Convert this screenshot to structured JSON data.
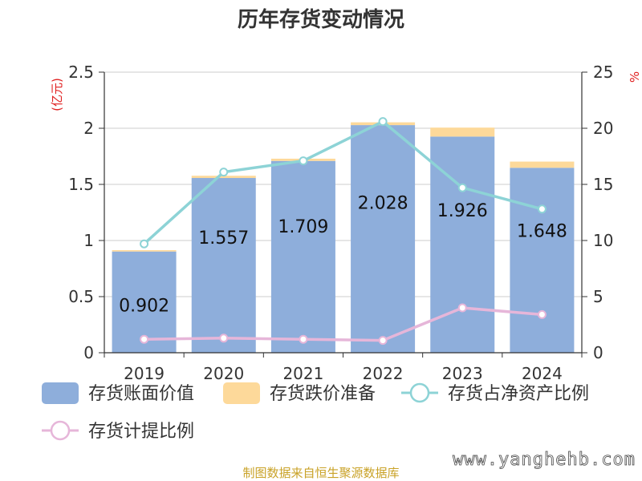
{
  "chart_data": {
    "type": "bar",
    "title": "历年存货变动情况",
    "categories": [
      "2019",
      "2020",
      "2021",
      "2022",
      "2023",
      "2024"
    ],
    "left_axis": {
      "unit": "(亿元)",
      "ylim": [
        0,
        2.5
      ],
      "ticks": [
        "0",
        "0.5",
        "1",
        "1.5",
        "2",
        "2.5"
      ]
    },
    "right_axis": {
      "unit": "%",
      "ylim": [
        0,
        25
      ],
      "ticks": [
        "0",
        "5",
        "10",
        "15",
        "20",
        "25"
      ]
    },
    "series": [
      {
        "name": "存货账面价值",
        "kind": "bar",
        "axis": "left",
        "color": "#8eaedb",
        "values": [
          0.902,
          1.557,
          1.709,
          2.028,
          1.926,
          1.648
        ],
        "labels": [
          "0.902",
          "1.557",
          "1.709",
          "2.028",
          "1.926",
          "1.648"
        ]
      },
      {
        "name": "存货跌价准备",
        "kind": "bar-stack",
        "axis": "left",
        "color": "#fdd99a",
        "values": [
          0.012,
          0.02,
          0.02,
          0.025,
          0.08,
          0.055
        ]
      },
      {
        "name": "存货占净资产比例",
        "kind": "line",
        "axis": "right",
        "color": "#8dd3d6",
        "values": [
          9.7,
          16.1,
          17.1,
          20.6,
          14.7,
          12.8
        ]
      },
      {
        "name": "存货计提比例",
        "kind": "line",
        "axis": "right",
        "color": "#e6b6d9",
        "values": [
          1.2,
          1.3,
          1.2,
          1.1,
          4.0,
          3.4
        ]
      }
    ],
    "source": "制图数据来自恒生聚源数据库",
    "watermark": "www.yanghehb.com"
  }
}
